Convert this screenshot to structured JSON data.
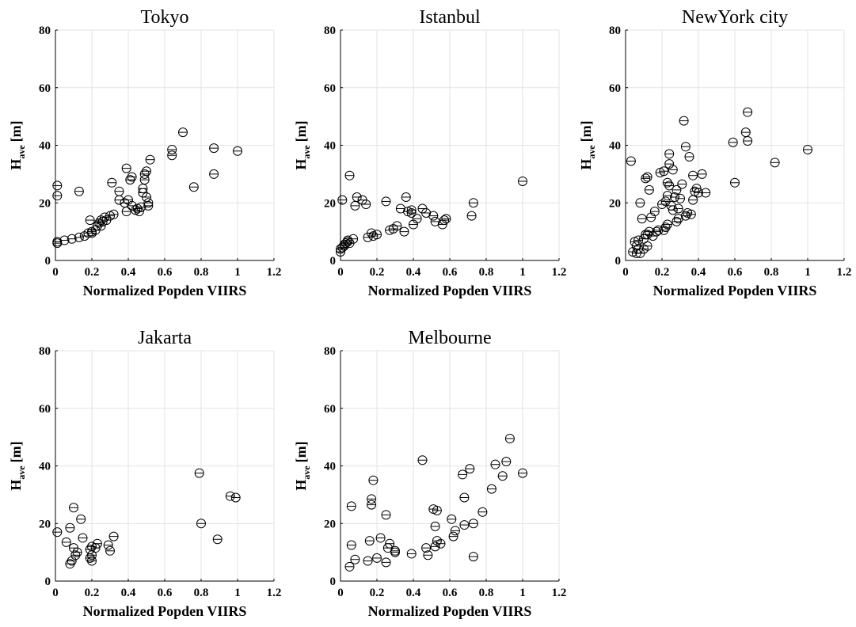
{
  "chart_data": [
    {
      "type": "scatter",
      "title": "Tokyo",
      "xlabel": "Normalized Popden VIIRS",
      "ylabel": "H",
      "ylabel_sub": "ave",
      "ylabel_unit": "[m]",
      "xlim": [
        0,
        1.2
      ],
      "ylim": [
        0,
        80
      ],
      "xticks": [
        "0",
        "0.2",
        "0.4",
        "0.6",
        "0.8",
        "1",
        "1.2"
      ],
      "yticks": [
        "0",
        "20",
        "40",
        "60",
        "80"
      ],
      "grid": true,
      "marker": "circle-with-horizontal-bar",
      "x": [
        0.01,
        0.01,
        0.01,
        0.01,
        0.05,
        0.09,
        0.13,
        0.13,
        0.16,
        0.18,
        0.19,
        0.2,
        0.2,
        0.22,
        0.23,
        0.24,
        0.25,
        0.25,
        0.26,
        0.27,
        0.28,
        0.3,
        0.31,
        0.32,
        0.35,
        0.35,
        0.38,
        0.39,
        0.39,
        0.4,
        0.41,
        0.42,
        0.42,
        0.44,
        0.45,
        0.46,
        0.47,
        0.48,
        0.48,
        0.49,
        0.49,
        0.5,
        0.5,
        0.51,
        0.51,
        0.52,
        0.64,
        0.64,
        0.7,
        0.76,
        0.87,
        0.87,
        1.0
      ],
      "y": [
        26,
        22.5,
        6.5,
        6,
        7,
        7.5,
        24,
        8,
        8.5,
        9.5,
        14,
        9.5,
        10,
        10.5,
        12,
        13,
        12,
        14,
        13.5,
        15,
        14,
        15.5,
        27,
        16,
        24,
        21,
        20,
        32,
        17,
        21,
        28,
        19,
        29,
        17.5,
        18,
        17,
        18.5,
        23.5,
        25,
        28,
        30,
        31,
        22,
        19,
        20,
        35,
        38.5,
        36.5,
        44.5,
        25.5,
        39,
        30,
        38
      ]
    },
    {
      "type": "scatter",
      "title": "Istanbul",
      "xlabel": "Normalized Popden VIIRS",
      "ylabel": "H",
      "ylabel_sub": "ave",
      "ylabel_unit": "[m]",
      "xlim": [
        0,
        1.2
      ],
      "ylim": [
        0,
        80
      ],
      "xticks": [
        "0",
        "0.2",
        "0.4",
        "0.6",
        "0.8",
        "1",
        "1.2"
      ],
      "yticks": [
        "0",
        "20",
        "40",
        "60",
        "80"
      ],
      "grid": true,
      "marker": "circle-with-horizontal-bar",
      "x": [
        0.0,
        0.0,
        0.01,
        0.01,
        0.02,
        0.02,
        0.03,
        0.04,
        0.04,
        0.05,
        0.05,
        0.07,
        0.08,
        0.09,
        0.12,
        0.14,
        0.15,
        0.17,
        0.18,
        0.2,
        0.25,
        0.27,
        0.29,
        0.31,
        0.33,
        0.35,
        0.36,
        0.37,
        0.39,
        0.39,
        0.4,
        0.42,
        0.45,
        0.47,
        0.51,
        0.52,
        0.56,
        0.57,
        0.58,
        0.72,
        0.73,
        1.0
      ],
      "y": [
        3,
        4,
        4.5,
        21,
        5,
        5.5,
        6,
        6.5,
        7,
        29.5,
        6,
        7.5,
        19,
        22,
        21,
        19.5,
        8,
        9.5,
        8.5,
        9,
        20.5,
        10.5,
        11,
        12,
        18,
        10,
        22,
        17,
        16.5,
        17.5,
        12.5,
        14.5,
        18,
        16.5,
        15.5,
        13.5,
        12.5,
        14,
        14.5,
        15.5,
        20,
        27.5
      ]
    },
    {
      "type": "scatter",
      "title": "NewYork city",
      "xlabel": "Normalized Popden VIIRS",
      "ylabel": "H",
      "ylabel_sub": "ave",
      "ylabel_unit": "[m]",
      "xlim": [
        0,
        1.2
      ],
      "ylim": [
        0,
        80
      ],
      "xticks": [
        "0",
        "0.2",
        "0.4",
        "0.6",
        "0.8",
        "1",
        "1.2"
      ],
      "yticks": [
        "0",
        "20",
        "40",
        "60",
        "80"
      ],
      "grid": true,
      "marker": "circle-with-horizontal-bar",
      "x": [
        0.03,
        0.04,
        0.05,
        0.06,
        0.06,
        0.07,
        0.07,
        0.08,
        0.08,
        0.09,
        0.1,
        0.1,
        0.11,
        0.11,
        0.12,
        0.12,
        0.12,
        0.13,
        0.13,
        0.14,
        0.15,
        0.16,
        0.17,
        0.18,
        0.19,
        0.2,
        0.21,
        0.21,
        0.22,
        0.22,
        0.23,
        0.23,
        0.23,
        0.24,
        0.24,
        0.24,
        0.25,
        0.26,
        0.26,
        0.27,
        0.28,
        0.28,
        0.29,
        0.29,
        0.3,
        0.31,
        0.32,
        0.33,
        0.33,
        0.34,
        0.35,
        0.36,
        0.37,
        0.37,
        0.38,
        0.39,
        0.4,
        0.42,
        0.44,
        0.59,
        0.6,
        0.66,
        0.67,
        0.67,
        0.82,
        1.0
      ],
      "y": [
        34.5,
        3,
        6.5,
        2.5,
        5,
        7,
        4,
        20,
        2.5,
        14.5,
        4,
        7.5,
        9,
        28.5,
        5,
        9,
        29,
        24.5,
        10,
        15,
        8.5,
        17,
        10,
        10.5,
        30.5,
        19.5,
        31,
        10.5,
        11.5,
        20.5,
        12.5,
        22.5,
        27,
        33.5,
        37,
        26,
        19,
        31.5,
        17.5,
        22,
        24.5,
        13.5,
        14.5,
        18,
        21.5,
        26.5,
        48.5,
        39.5,
        15.5,
        16.5,
        36,
        16,
        21,
        29.5,
        24,
        25,
        23.5,
        30,
        23.5,
        41,
        27,
        44.5,
        51.5,
        41.5,
        34,
        38.5
      ]
    },
    {
      "type": "scatter",
      "title": "Jakarta",
      "xlabel": "Normalized Popden VIIRS",
      "ylabel": "H",
      "ylabel_sub": "ave",
      "ylabel_unit": "[m]",
      "xlim": [
        0,
        1.2
      ],
      "ylim": [
        0,
        80
      ],
      "xticks": [
        "0",
        "0.2",
        "0.4",
        "0.6",
        "0.8",
        "1",
        "1.2"
      ],
      "yticks": [
        "0",
        "20",
        "40",
        "60",
        "80"
      ],
      "grid": true,
      "marker": "circle-with-horizontal-bar",
      "x": [
        0.01,
        0.06,
        0.08,
        0.08,
        0.09,
        0.1,
        0.1,
        0.11,
        0.12,
        0.14,
        0.15,
        0.19,
        0.19,
        0.2,
        0.2,
        0.2,
        0.22,
        0.23,
        0.29,
        0.3,
        0.32,
        0.79,
        0.8,
        0.89,
        0.96,
        0.99
      ],
      "y": [
        17,
        13.5,
        18.5,
        6,
        7,
        25.5,
        11.5,
        9,
        10,
        21.5,
        15,
        8,
        11,
        7,
        12,
        9,
        11.5,
        13,
        12.5,
        10.5,
        15.5,
        37.5,
        20,
        14.5,
        29.5,
        29
      ]
    },
    {
      "type": "scatter",
      "title": "Melbourne",
      "xlabel": "Normalized Popden VIIRS",
      "ylabel": "H",
      "ylabel_sub": "ave",
      "ylabel_unit": "[m]",
      "xlim": [
        0,
        1.2
      ],
      "ylim": [
        0,
        80
      ],
      "xticks": [
        "0",
        "0.2",
        "0.4",
        "0.6",
        "0.8",
        "1",
        "1.2"
      ],
      "yticks": [
        "0",
        "20",
        "40",
        "60",
        "80"
      ],
      "grid": true,
      "marker": "circle-with-horizontal-bar",
      "x": [
        0.05,
        0.06,
        0.06,
        0.08,
        0.15,
        0.16,
        0.17,
        0.17,
        0.18,
        0.2,
        0.22,
        0.25,
        0.25,
        0.26,
        0.27,
        0.3,
        0.3,
        0.39,
        0.45,
        0.47,
        0.48,
        0.51,
        0.52,
        0.52,
        0.53,
        0.53,
        0.55,
        0.61,
        0.62,
        0.63,
        0.67,
        0.68,
        0.68,
        0.71,
        0.73,
        0.73,
        0.78,
        0.83,
        0.85,
        0.89,
        0.91,
        0.93,
        1.0
      ],
      "y": [
        5,
        26,
        12.5,
        7.5,
        7,
        14,
        28.5,
        26.5,
        35,
        8,
        15,
        23,
        6.5,
        11.5,
        13,
        10.5,
        10,
        9.5,
        42,
        11.5,
        9,
        25,
        12,
        19,
        14,
        24.5,
        13,
        21.5,
        15.5,
        17.5,
        37,
        29,
        19.5,
        39,
        8.5,
        20,
        24,
        32,
        40.5,
        36.5,
        41.5,
        49.5,
        37.5
      ]
    }
  ]
}
